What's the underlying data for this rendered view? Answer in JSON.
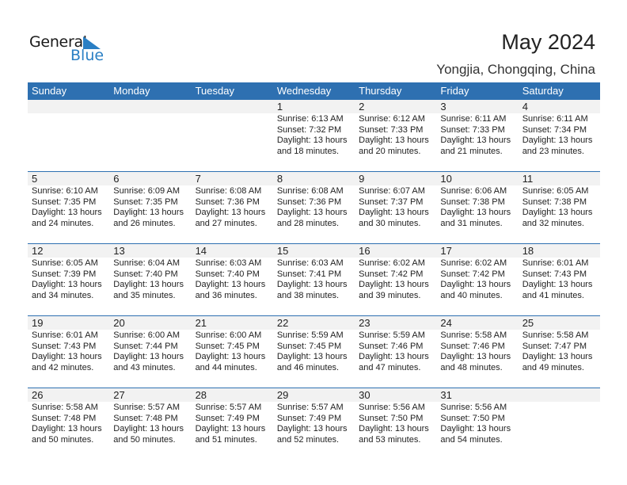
{
  "logo": {
    "text1": "General",
    "text2": "Blue"
  },
  "title": "May 2024",
  "location": "Yongjia, Chongqing, China",
  "colors": {
    "header": "#2e70b1",
    "accent": "#2a7fc4"
  },
  "weekdays": [
    "Sunday",
    "Monday",
    "Tuesday",
    "Wednesday",
    "Thursday",
    "Friday",
    "Saturday"
  ],
  "weeks": [
    [
      null,
      null,
      null,
      {
        "day": "1",
        "sunrise": "Sunrise: 6:13 AM",
        "sunset": "Sunset: 7:32 PM",
        "daylight1": "Daylight: 13 hours",
        "daylight2": "and 18 minutes."
      },
      {
        "day": "2",
        "sunrise": "Sunrise: 6:12 AM",
        "sunset": "Sunset: 7:33 PM",
        "daylight1": "Daylight: 13 hours",
        "daylight2": "and 20 minutes."
      },
      {
        "day": "3",
        "sunrise": "Sunrise: 6:11 AM",
        "sunset": "Sunset: 7:33 PM",
        "daylight1": "Daylight: 13 hours",
        "daylight2": "and 21 minutes."
      },
      {
        "day": "4",
        "sunrise": "Sunrise: 6:11 AM",
        "sunset": "Sunset: 7:34 PM",
        "daylight1": "Daylight: 13 hours",
        "daylight2": "and 23 minutes."
      }
    ],
    [
      {
        "day": "5",
        "sunrise": "Sunrise: 6:10 AM",
        "sunset": "Sunset: 7:35 PM",
        "daylight1": "Daylight: 13 hours",
        "daylight2": "and 24 minutes."
      },
      {
        "day": "6",
        "sunrise": "Sunrise: 6:09 AM",
        "sunset": "Sunset: 7:35 PM",
        "daylight1": "Daylight: 13 hours",
        "daylight2": "and 26 minutes."
      },
      {
        "day": "7",
        "sunrise": "Sunrise: 6:08 AM",
        "sunset": "Sunset: 7:36 PM",
        "daylight1": "Daylight: 13 hours",
        "daylight2": "and 27 minutes."
      },
      {
        "day": "8",
        "sunrise": "Sunrise: 6:08 AM",
        "sunset": "Sunset: 7:36 PM",
        "daylight1": "Daylight: 13 hours",
        "daylight2": "and 28 minutes."
      },
      {
        "day": "9",
        "sunrise": "Sunrise: 6:07 AM",
        "sunset": "Sunset: 7:37 PM",
        "daylight1": "Daylight: 13 hours",
        "daylight2": "and 30 minutes."
      },
      {
        "day": "10",
        "sunrise": "Sunrise: 6:06 AM",
        "sunset": "Sunset: 7:38 PM",
        "daylight1": "Daylight: 13 hours",
        "daylight2": "and 31 minutes."
      },
      {
        "day": "11",
        "sunrise": "Sunrise: 6:05 AM",
        "sunset": "Sunset: 7:38 PM",
        "daylight1": "Daylight: 13 hours",
        "daylight2": "and 32 minutes."
      }
    ],
    [
      {
        "day": "12",
        "sunrise": "Sunrise: 6:05 AM",
        "sunset": "Sunset: 7:39 PM",
        "daylight1": "Daylight: 13 hours",
        "daylight2": "and 34 minutes."
      },
      {
        "day": "13",
        "sunrise": "Sunrise: 6:04 AM",
        "sunset": "Sunset: 7:40 PM",
        "daylight1": "Daylight: 13 hours",
        "daylight2": "and 35 minutes."
      },
      {
        "day": "14",
        "sunrise": "Sunrise: 6:03 AM",
        "sunset": "Sunset: 7:40 PM",
        "daylight1": "Daylight: 13 hours",
        "daylight2": "and 36 minutes."
      },
      {
        "day": "15",
        "sunrise": "Sunrise: 6:03 AM",
        "sunset": "Sunset: 7:41 PM",
        "daylight1": "Daylight: 13 hours",
        "daylight2": "and 38 minutes."
      },
      {
        "day": "16",
        "sunrise": "Sunrise: 6:02 AM",
        "sunset": "Sunset: 7:42 PM",
        "daylight1": "Daylight: 13 hours",
        "daylight2": "and 39 minutes."
      },
      {
        "day": "17",
        "sunrise": "Sunrise: 6:02 AM",
        "sunset": "Sunset: 7:42 PM",
        "daylight1": "Daylight: 13 hours",
        "daylight2": "and 40 minutes."
      },
      {
        "day": "18",
        "sunrise": "Sunrise: 6:01 AM",
        "sunset": "Sunset: 7:43 PM",
        "daylight1": "Daylight: 13 hours",
        "daylight2": "and 41 minutes."
      }
    ],
    [
      {
        "day": "19",
        "sunrise": "Sunrise: 6:01 AM",
        "sunset": "Sunset: 7:43 PM",
        "daylight1": "Daylight: 13 hours",
        "daylight2": "and 42 minutes."
      },
      {
        "day": "20",
        "sunrise": "Sunrise: 6:00 AM",
        "sunset": "Sunset: 7:44 PM",
        "daylight1": "Daylight: 13 hours",
        "daylight2": "and 43 minutes."
      },
      {
        "day": "21",
        "sunrise": "Sunrise: 6:00 AM",
        "sunset": "Sunset: 7:45 PM",
        "daylight1": "Daylight: 13 hours",
        "daylight2": "and 44 minutes."
      },
      {
        "day": "22",
        "sunrise": "Sunrise: 5:59 AM",
        "sunset": "Sunset: 7:45 PM",
        "daylight1": "Daylight: 13 hours",
        "daylight2": "and 46 minutes."
      },
      {
        "day": "23",
        "sunrise": "Sunrise: 5:59 AM",
        "sunset": "Sunset: 7:46 PM",
        "daylight1": "Daylight: 13 hours",
        "daylight2": "and 47 minutes."
      },
      {
        "day": "24",
        "sunrise": "Sunrise: 5:58 AM",
        "sunset": "Sunset: 7:46 PM",
        "daylight1": "Daylight: 13 hours",
        "daylight2": "and 48 minutes."
      },
      {
        "day": "25",
        "sunrise": "Sunrise: 5:58 AM",
        "sunset": "Sunset: 7:47 PM",
        "daylight1": "Daylight: 13 hours",
        "daylight2": "and 49 minutes."
      }
    ],
    [
      {
        "day": "26",
        "sunrise": "Sunrise: 5:58 AM",
        "sunset": "Sunset: 7:48 PM",
        "daylight1": "Daylight: 13 hours",
        "daylight2": "and 50 minutes."
      },
      {
        "day": "27",
        "sunrise": "Sunrise: 5:57 AM",
        "sunset": "Sunset: 7:48 PM",
        "daylight1": "Daylight: 13 hours",
        "daylight2": "and 50 minutes."
      },
      {
        "day": "28",
        "sunrise": "Sunrise: 5:57 AM",
        "sunset": "Sunset: 7:49 PM",
        "daylight1": "Daylight: 13 hours",
        "daylight2": "and 51 minutes."
      },
      {
        "day": "29",
        "sunrise": "Sunrise: 5:57 AM",
        "sunset": "Sunset: 7:49 PM",
        "daylight1": "Daylight: 13 hours",
        "daylight2": "and 52 minutes."
      },
      {
        "day": "30",
        "sunrise": "Sunrise: 5:56 AM",
        "sunset": "Sunset: 7:50 PM",
        "daylight1": "Daylight: 13 hours",
        "daylight2": "and 53 minutes."
      },
      {
        "day": "31",
        "sunrise": "Sunrise: 5:56 AM",
        "sunset": "Sunset: 7:50 PM",
        "daylight1": "Daylight: 13 hours",
        "daylight2": "and 54 minutes."
      },
      null
    ]
  ]
}
